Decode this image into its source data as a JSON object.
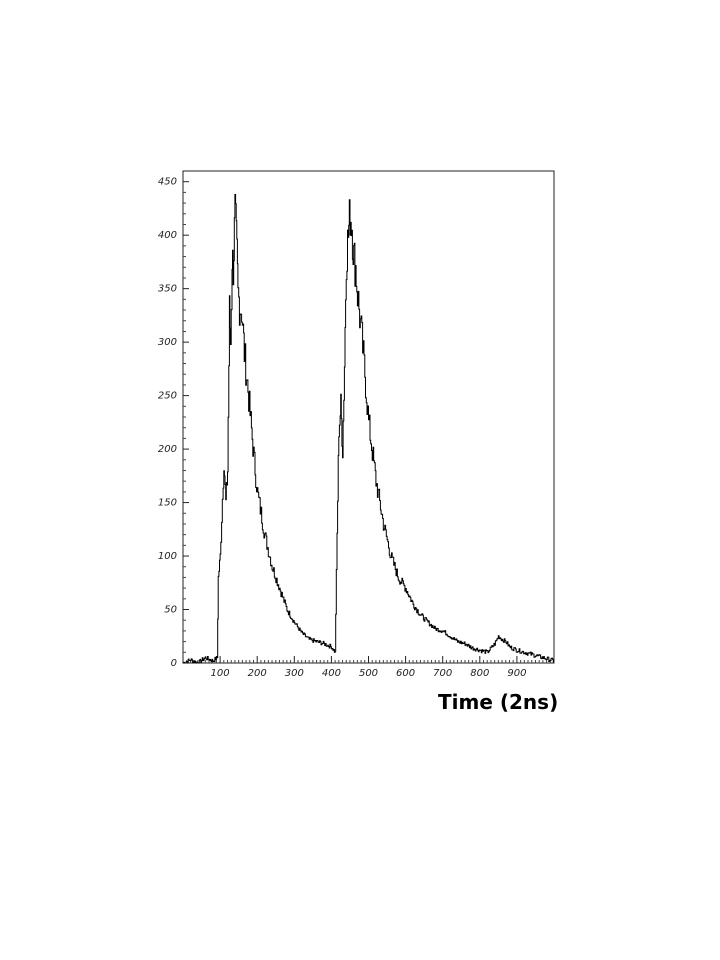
{
  "chart_data": {
    "type": "line",
    "title": "",
    "xlabel": "Time  (2ns)",
    "ylabel": "",
    "xlim": [
      0,
      1000
    ],
    "ylim": [
      0,
      460
    ],
    "x_ticks": [
      100,
      200,
      300,
      400,
      500,
      600,
      700,
      800,
      900
    ],
    "y_ticks": [
      0,
      50,
      100,
      150,
      200,
      250,
      300,
      350,
      400,
      450
    ],
    "x_tick_labels": [
      "100",
      "200",
      "300",
      "400",
      "500",
      "600",
      "700",
      "800",
      "900"
    ],
    "y_tick_labels": [
      "0",
      "50",
      "100",
      "150",
      "200",
      "250",
      "300",
      "350",
      "400",
      "450"
    ],
    "grid": false,
    "series": [
      {
        "name": "",
        "x": [
          0,
          20,
          40,
          60,
          80,
          92,
          95,
          100,
          110,
          115,
          120,
          125,
          128,
          132,
          135,
          140,
          145,
          148,
          152,
          158,
          165,
          175,
          190,
          200,
          220,
          240,
          260,
          280,
          300,
          320,
          340,
          360,
          380,
          400,
          410,
          415,
          420,
          425,
          430,
          435,
          440,
          445,
          450,
          455,
          460,
          465,
          470,
          480,
          490,
          500,
          520,
          540,
          560,
          580,
          600,
          620,
          640,
          660,
          680,
          700,
          720,
          740,
          760,
          780,
          800,
          820,
          840,
          850,
          860,
          870,
          880,
          900,
          920,
          940,
          960,
          980,
          1000
        ],
        "y": [
          0,
          3,
          0,
          5,
          2,
          5,
          80,
          100,
          190,
          150,
          180,
          330,
          300,
          380,
          370,
          420,
          380,
          345,
          335,
          330,
          290,
          255,
          195,
          160,
          120,
          90,
          70,
          50,
          38,
          28,
          22,
          20,
          18,
          15,
          10,
          120,
          220,
          240,
          200,
          280,
          380,
          400,
          420,
          410,
          380,
          370,
          345,
          310,
          270,
          225,
          170,
          130,
          100,
          80,
          70,
          55,
          45,
          38,
          32,
          30,
          25,
          20,
          18,
          14,
          12,
          10,
          18,
          25,
          22,
          20,
          15,
          12,
          10,
          8,
          6,
          4,
          2
        ]
      }
    ]
  }
}
